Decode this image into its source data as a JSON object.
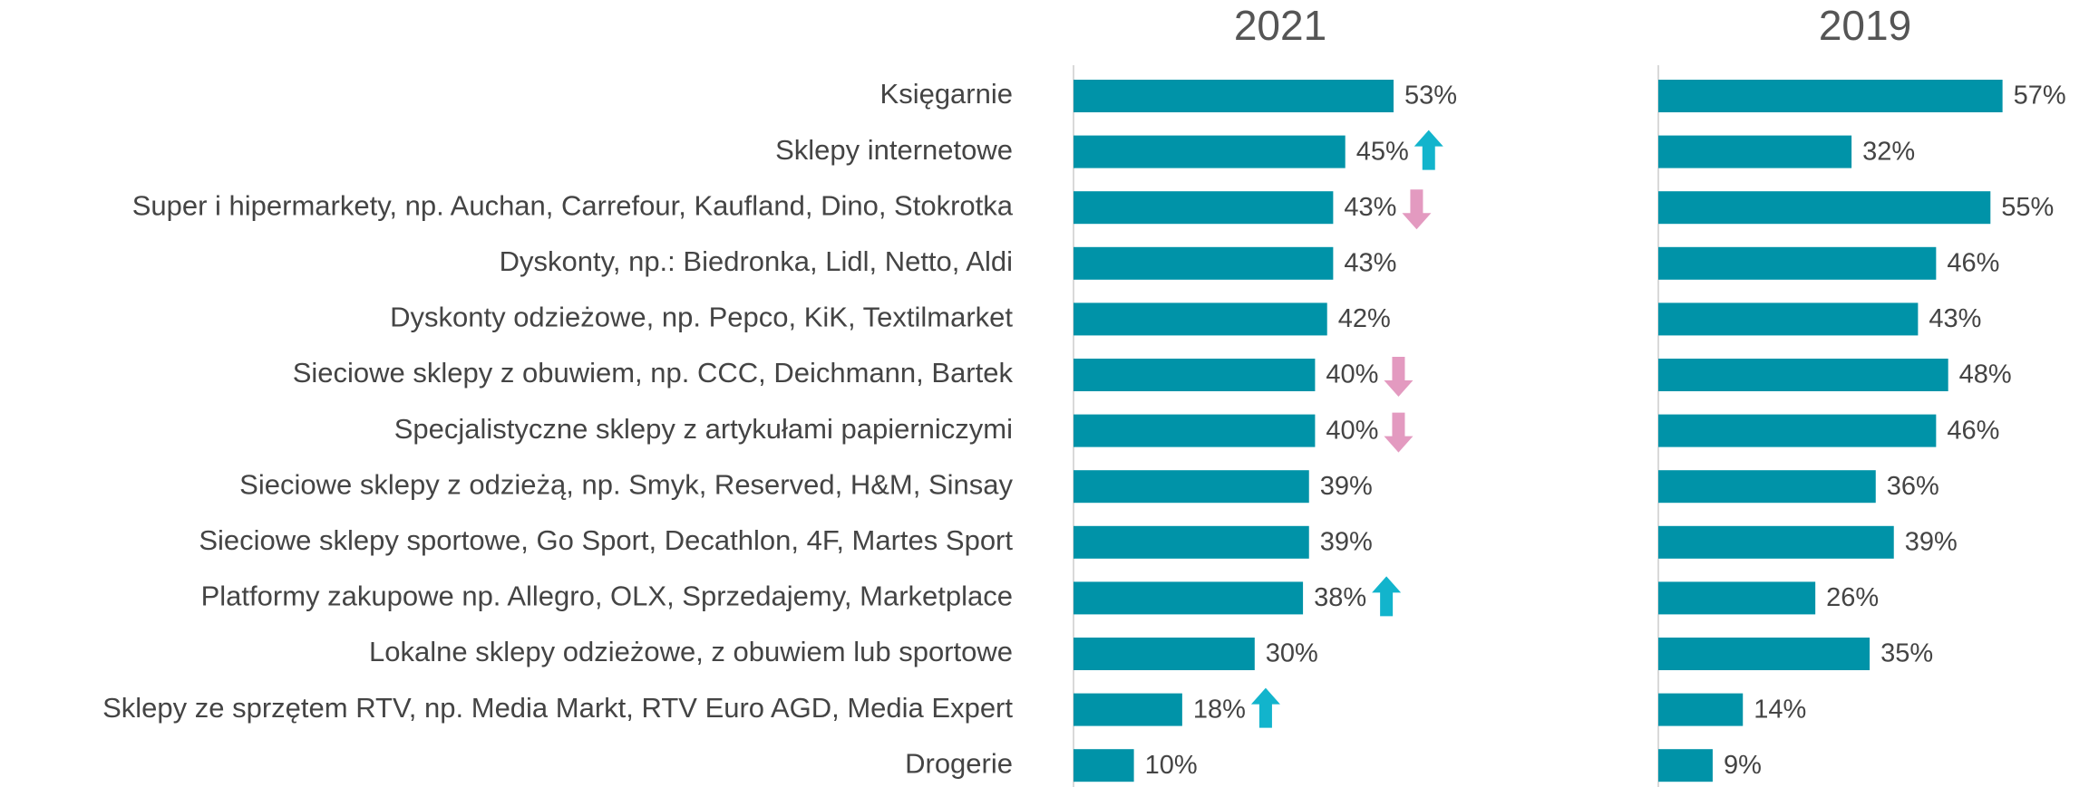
{
  "chart_data": [
    {
      "type": "bar",
      "title": "2021",
      "categories": [
        "Księgarnie",
        "Sklepy internetowe",
        "Super i hipermarkety, np. Auchan, Carrefour, Kaufland, Dino, Stokrotka",
        "Dyskonty, np.: Biedronka, Lidl, Netto, Aldi",
        "Dyskonty odzieżowe, np. Pepco, KiK, Textilmarket",
        "Sieciowe sklepy z obuwiem, np. CCC, Deichmann, Bartek",
        "Specjalistyczne sklepy z artykułami papierniczymi",
        "Sieciowe sklepy z odzieżą, np. Smyk, Reserved, H&M, Sinsay",
        "Sieciowe sklepy sportowe, Go Sport, Decathlon, 4F, Martes Sport",
        "Platformy zakupowe np. Allegro, OLX, Sprzedajemy, Marketplace",
        "Lokalne sklepy odzieżowe, z obuwiem lub sportowe",
        "Sklepy ze sprzętem RTV, np. Media Markt, RTV Euro AGD, Media Expert",
        "Drogerie"
      ],
      "values": [
        53,
        45,
        43,
        43,
        42,
        40,
        40,
        39,
        39,
        38,
        30,
        18,
        10
      ],
      "value_labels": [
        "53%",
        "45%",
        "43%",
        "43%",
        "42%",
        "40%",
        "40%",
        "39%",
        "39%",
        "38%",
        "30%",
        "18%",
        "10%"
      ],
      "trend": [
        null,
        "up",
        "down",
        null,
        null,
        "down",
        "down",
        null,
        null,
        "up",
        null,
        "up",
        null
      ],
      "trend_colors": {
        "up": "#12b4cc",
        "down": "#e39ac0"
      },
      "color": "#0093a8",
      "xlim": [
        0,
        100
      ]
    },
    {
      "type": "bar",
      "title": "2019",
      "values": [
        57,
        32,
        55,
        46,
        43,
        48,
        46,
        36,
        39,
        26,
        35,
        14,
        9
      ],
      "value_labels": [
        "57%",
        "32%",
        "55%",
        "46%",
        "43%",
        "48%",
        "46%",
        "36%",
        "39%",
        "26%",
        "35%",
        "14%",
        "9%"
      ],
      "color": "#0093a8",
      "xlim": [
        0,
        100
      ]
    }
  ]
}
